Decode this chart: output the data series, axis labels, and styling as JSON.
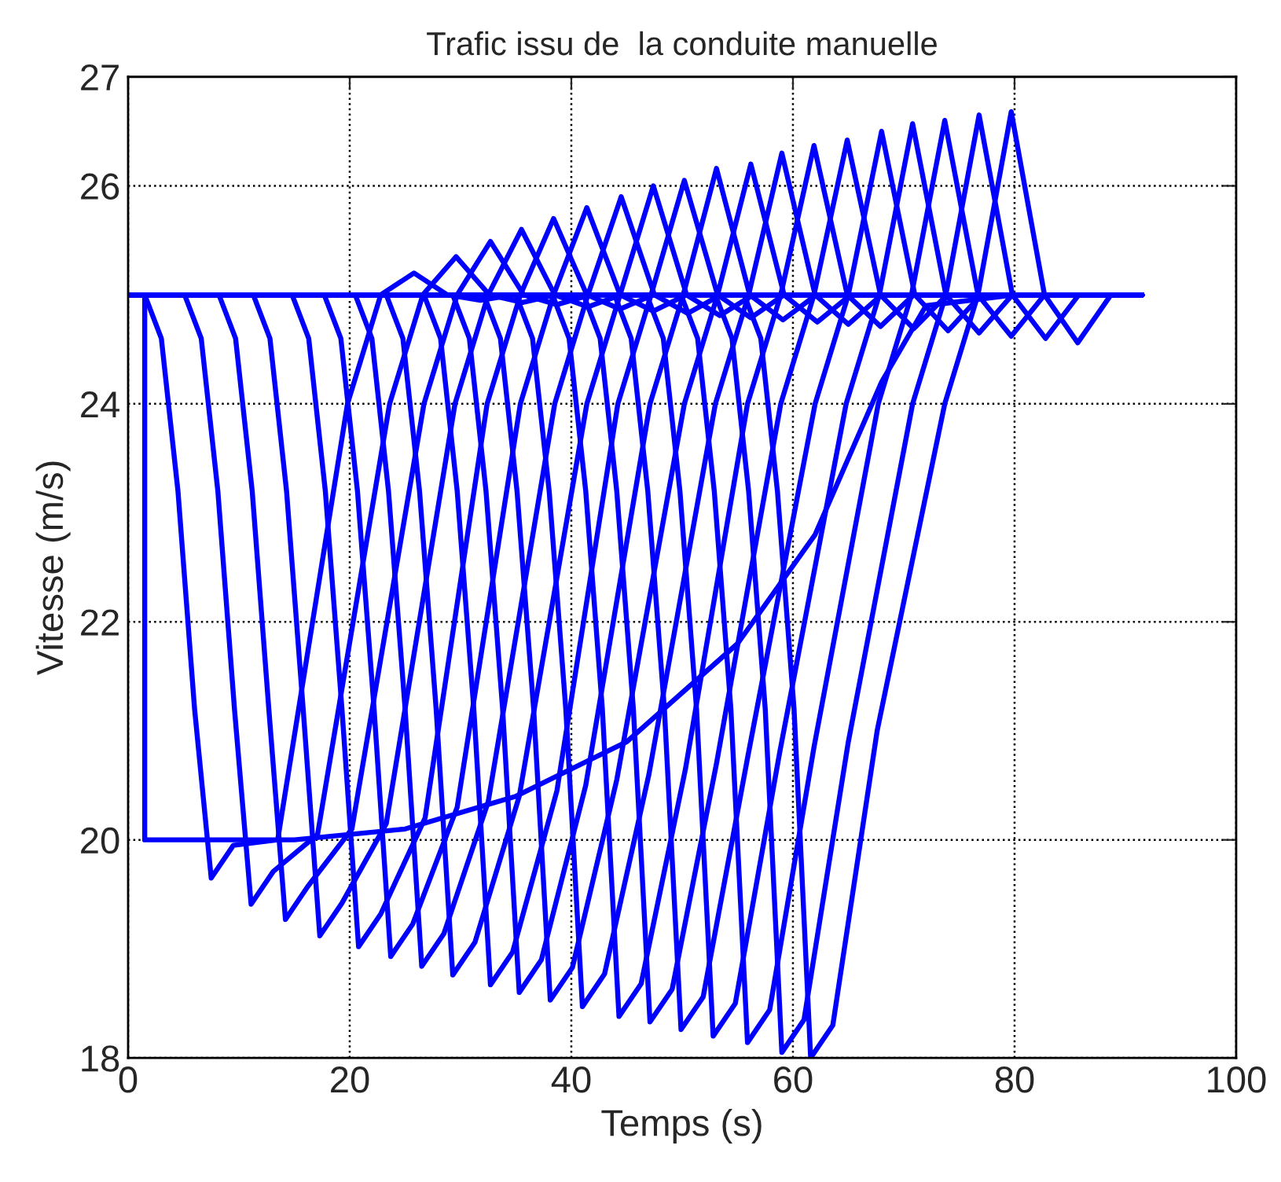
{
  "chart_data": {
    "type": "line",
    "title": "Trafic issu de  la conduite manuelle",
    "xlabel": "Temps (s)",
    "ylabel": "Vitesse (m/s)",
    "xlim": [
      0,
      100
    ],
    "xticks": [
      0,
      20,
      40,
      60,
      80,
      100
    ],
    "ylim": [
      18,
      27
    ],
    "yticks": [
      18,
      20,
      22,
      24,
      26,
      27
    ],
    "grid": true,
    "marker": "none",
    "line_style": "solid",
    "series": [
      {
        "color": "#0000ff",
        "x": [
          0,
          1.5,
          1.5,
          15,
          25,
          35,
          45,
          55,
          62,
          68,
          72,
          80,
          91.5
        ],
        "values": [
          25,
          25,
          20,
          20,
          20.1,
          20.4,
          20.9,
          21.8,
          22.8,
          24.2,
          24.9,
          25,
          25
        ]
      },
      {
        "color": "#0000ff",
        "x": [
          0,
          1.5,
          3.0,
          4.5,
          6.0,
          7.5,
          9.5,
          13.5,
          19.8,
          22.8,
          25.8,
          28.8,
          31.8,
          34.8,
          91.5
        ],
        "values": [
          25,
          25,
          24.6,
          23.2,
          21.2,
          19.65,
          19.95,
          20.0,
          24,
          25,
          25.2,
          25,
          24.95,
          25,
          25
        ]
      },
      {
        "color": "#0000ff",
        "x": [
          0,
          5.1,
          6.6,
          8.1,
          9.6,
          11.1,
          13.1,
          17.1,
          23.6,
          26.6,
          29.6,
          32.6,
          35.6,
          38.6,
          91.5
        ],
        "values": [
          25,
          25,
          24.6,
          23.2,
          21.2,
          19.41,
          19.71,
          20.05,
          24,
          25,
          25.35,
          25,
          24.93,
          25,
          25
        ]
      },
      {
        "color": "#0000ff",
        "x": [
          0,
          8.2,
          9.7,
          11.2,
          12.7,
          14.2,
          16.2,
          20.2,
          26.7,
          29.7,
          32.7,
          35.7,
          38.7,
          41.7,
          91.5
        ],
        "values": [
          25,
          25,
          24.6,
          23.2,
          21.2,
          19.27,
          19.57,
          20.1,
          24,
          25,
          25.49,
          25,
          24.91,
          25,
          25
        ]
      },
      {
        "color": "#0000ff",
        "x": [
          0,
          11.3,
          12.8,
          14.3,
          15.8,
          17.3,
          19.3,
          23.3,
          29.5,
          32.5,
          35.5,
          38.5,
          41.5,
          44.5,
          91.5
        ],
        "values": [
          25,
          25,
          24.6,
          23.2,
          21.2,
          19.12,
          19.42,
          20.15,
          24,
          25,
          25.6,
          25,
          24.89,
          25,
          25
        ]
      },
      {
        "color": "#0000ff",
        "x": [
          0,
          14.8,
          16.3,
          17.8,
          19.3,
          20.8,
          22.8,
          26.8,
          32.4,
          35.4,
          38.4,
          41.4,
          44.4,
          47.4,
          91.5
        ],
        "values": [
          25,
          25,
          24.6,
          23.2,
          21.2,
          19.02,
          19.32,
          20.2,
          24,
          25,
          25.7,
          25,
          24.87,
          25,
          25
        ]
      },
      {
        "color": "#0000ff",
        "x": [
          0,
          17.7,
          19.2,
          20.7,
          22.2,
          23.7,
          25.7,
          29.7,
          35.4,
          38.4,
          41.4,
          44.4,
          47.4,
          50.4,
          91.5
        ],
        "values": [
          25,
          25,
          24.6,
          23.2,
          21.2,
          18.93,
          19.23,
          20.3,
          24,
          25,
          25.8,
          25,
          24.85,
          25,
          25
        ]
      },
      {
        "color": "#0000ff",
        "x": [
          0,
          20.5,
          22,
          23.5,
          25,
          26.5,
          28.5,
          32.5,
          38.5,
          41.5,
          44.5,
          47.5,
          50.5,
          53.5,
          91.5
        ],
        "values": [
          25,
          25,
          24.6,
          23.2,
          21.2,
          18.84,
          19.14,
          20.35,
          24,
          25,
          25.9,
          25,
          24.83,
          25,
          25
        ]
      },
      {
        "color": "#0000ff",
        "x": [
          0,
          23.3,
          24.8,
          26.3,
          27.8,
          29.3,
          31.3,
          35.3,
          41.4,
          44.4,
          47.4,
          50.4,
          53.4,
          56.4,
          91.5
        ],
        "values": [
          25,
          25,
          24.6,
          23.2,
          21.2,
          18.76,
          19.06,
          20.4,
          24,
          25,
          26.0,
          25,
          24.81,
          25,
          25
        ]
      },
      {
        "color": "#0000ff",
        "x": [
          0,
          26.7,
          28.2,
          29.7,
          31.2,
          32.7,
          34.7,
          38.7,
          44.2,
          47.2,
          50.2,
          53.2,
          56.2,
          59.2,
          91.5
        ],
        "values": [
          25,
          25,
          24.6,
          23.2,
          21.2,
          18.67,
          18.97,
          20.45,
          24,
          25,
          26.05,
          25,
          24.79,
          25,
          25
        ]
      },
      {
        "color": "#0000ff",
        "x": [
          0,
          29.3,
          30.8,
          32.3,
          33.8,
          35.3,
          37.3,
          41.3,
          47.1,
          50.1,
          53.1,
          56.1,
          59.1,
          62.1,
          91.5
        ],
        "values": [
          25,
          25,
          24.6,
          23.2,
          21.2,
          18.6,
          18.9,
          20.5,
          24,
          25,
          26.16,
          25,
          24.77,
          25,
          25
        ]
      },
      {
        "color": "#0000ff",
        "x": [
          0,
          32.1,
          33.6,
          35.1,
          36.6,
          38.1,
          40.1,
          44.1,
          50.2,
          53.2,
          56.2,
          59.2,
          62.2,
          65.2,
          91.5
        ],
        "values": [
          25,
          25,
          24.6,
          23.2,
          21.2,
          18.53,
          18.83,
          20.55,
          24,
          25,
          26.2,
          25,
          24.75,
          25,
          25
        ]
      },
      {
        "color": "#0000ff",
        "x": [
          0,
          35,
          36.5,
          38,
          39.5,
          41,
          43,
          47,
          53,
          56,
          59,
          62,
          65,
          68,
          91.5
        ],
        "values": [
          25,
          25,
          24.6,
          23.2,
          21.2,
          18.47,
          18.77,
          20.6,
          24,
          25,
          26.3,
          25,
          24.73,
          25,
          25
        ]
      },
      {
        "color": "#0000ff",
        "x": [
          0,
          38.3,
          39.8,
          41.3,
          42.8,
          44.3,
          46.3,
          50.3,
          55.9,
          58.9,
          61.9,
          64.9,
          67.9,
          70.9,
          91.5
        ],
        "values": [
          25,
          25,
          24.6,
          23.2,
          21.2,
          18.38,
          18.68,
          20.65,
          24,
          25,
          26.37,
          25,
          24.71,
          25,
          25
        ]
      },
      {
        "color": "#0000ff",
        "x": [
          0,
          41.1,
          42.6,
          44.1,
          45.6,
          47.1,
          49.1,
          53.1,
          58.9,
          61.9,
          64.9,
          67.9,
          70.9,
          73.9,
          91.5
        ],
        "values": [
          25,
          25,
          24.6,
          23.2,
          21.2,
          18.33,
          18.63,
          20.7,
          24,
          25,
          26.42,
          25,
          24.69,
          25,
          25
        ]
      },
      {
        "color": "#0000ff",
        "x": [
          0,
          43.9,
          45.4,
          46.9,
          48.4,
          49.9,
          51.9,
          55.9,
          62,
          65,
          68,
          71,
          74,
          77,
          91.5
        ],
        "values": [
          25,
          25,
          24.6,
          23.2,
          21.2,
          18.26,
          18.56,
          20.75,
          24,
          25,
          26.5,
          25,
          24.67,
          25,
          25
        ]
      },
      {
        "color": "#0000ff",
        "x": [
          0,
          46.8,
          48.3,
          49.8,
          51.3,
          52.8,
          54.8,
          58.8,
          64.8,
          67.8,
          70.8,
          73.8,
          76.8,
          79.8,
          91.5
        ],
        "values": [
          25,
          25,
          24.6,
          23.2,
          21.2,
          18.2,
          18.5,
          20.8,
          24,
          25,
          26.57,
          25,
          24.65,
          25,
          25
        ]
      },
      {
        "color": "#0000ff",
        "x": [
          0,
          49.9,
          51.4,
          52.9,
          54.4,
          55.9,
          57.9,
          61.9,
          67.7,
          70.7,
          73.7,
          76.7,
          79.7,
          82.7,
          91.5
        ],
        "values": [
          25,
          25,
          24.6,
          23.2,
          21.2,
          18.14,
          18.44,
          20.85,
          24,
          25,
          26.6,
          25,
          24.62,
          25,
          25
        ]
      },
      {
        "color": "#0000ff",
        "x": [
          0,
          53,
          54.5,
          56,
          57.5,
          59,
          61,
          65,
          70.8,
          73.8,
          76.8,
          79.8,
          82.8,
          85.8,
          91.5
        ],
        "values": [
          25,
          25,
          24.6,
          23.2,
          21.2,
          18.05,
          18.35,
          20.9,
          24,
          25,
          26.65,
          25,
          24.6,
          25,
          25
        ]
      },
      {
        "color": "#0000ff",
        "x": [
          0,
          55.6,
          57.1,
          58.6,
          60.1,
          61.6,
          63.6,
          67.6,
          73.7,
          76.7,
          79.7,
          82.7,
          85.7,
          88.7,
          91.5
        ],
        "values": [
          25,
          25,
          24.6,
          23.2,
          21.2,
          18.0,
          18.3,
          21.0,
          24,
          25,
          26.68,
          25,
          24.56,
          25,
          25
        ]
      }
    ]
  }
}
